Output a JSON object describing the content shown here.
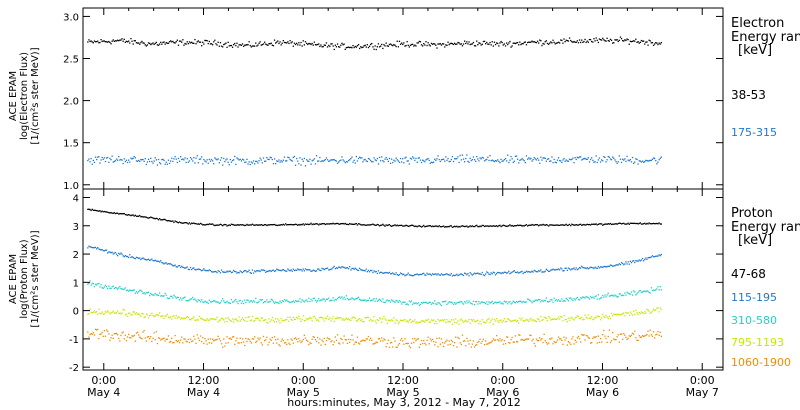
{
  "chart_data": [
    {
      "type": "scatter",
      "panel": "electron",
      "ylabel_lines": [
        "ACE EPAM",
        "log(Electron Flux)",
        "[1/(cm²s ster MeV)]"
      ],
      "ylim": [
        0.95,
        3.1
      ],
      "yticks": [
        "1.0",
        "1.5",
        "2.0",
        "2.5",
        "3.0"
      ],
      "ytick_values": [
        1.0,
        1.5,
        2.0,
        2.5,
        3.0
      ],
      "legend_title": [
        "Electron",
        "Energy ranges",
        "[keV]"
      ],
      "legend_placement": "right",
      "series": [
        {
          "name": "38-53",
          "color": "#000000",
          "base": [
            2.7,
            2.72,
            2.68,
            2.7,
            2.69,
            2.66,
            2.7,
            2.67,
            2.65,
            2.66,
            2.68,
            2.67,
            2.69,
            2.68,
            2.7,
            2.71,
            2.72,
            2.72,
            2.69
          ],
          "noise": 0.05
        },
        {
          "name": "175-315",
          "color": "#1f77d0",
          "base": [
            1.3,
            1.31,
            1.29,
            1.3,
            1.3,
            1.29,
            1.3,
            1.29,
            1.3,
            1.3,
            1.29,
            1.3,
            1.31,
            1.3,
            1.3,
            1.31,
            1.31,
            1.3,
            1.3
          ],
          "noise": 0.07
        }
      ]
    },
    {
      "type": "scatter",
      "panel": "proton",
      "ylabel_lines": [
        "ACE EPAM",
        "log(Proton Flux)",
        "[1/(cm²s ster MeV)]"
      ],
      "ylim": [
        -2.1,
        4.3
      ],
      "yticks": [
        "-2",
        "-1",
        "0",
        "1",
        "2",
        "3",
        "4"
      ],
      "ytick_values": [
        -2,
        -1,
        0,
        1,
        2,
        3,
        4
      ],
      "legend_title": [
        "Proton",
        "Energy ranges",
        "[keV]"
      ],
      "legend_placement": "right",
      "series": [
        {
          "name": "47-68",
          "color": "#000000",
          "base": [
            3.6,
            3.45,
            3.3,
            3.12,
            3.05,
            3.05,
            3.05,
            3.08,
            3.1,
            3.05,
            3.02,
            3.0,
            3.0,
            3.02,
            3.05,
            3.05,
            3.07,
            3.1,
            3.1
          ],
          "noise": 0.04
        },
        {
          "name": "115-195",
          "color": "#1f77d0",
          "base": [
            2.3,
            2.0,
            1.8,
            1.55,
            1.4,
            1.4,
            1.45,
            1.45,
            1.55,
            1.4,
            1.3,
            1.3,
            1.3,
            1.35,
            1.4,
            1.5,
            1.55,
            1.7,
            2.0
          ],
          "noise": 0.08
        },
        {
          "name": "310-580",
          "color": "#20d0c8",
          "base": [
            1.0,
            0.8,
            0.6,
            0.45,
            0.35,
            0.35,
            0.35,
            0.4,
            0.45,
            0.4,
            0.3,
            0.3,
            0.3,
            0.3,
            0.35,
            0.4,
            0.5,
            0.6,
            0.8
          ],
          "noise": 0.12
        },
        {
          "name": "795-1193",
          "color": "#c8e600",
          "base": [
            0.0,
            -0.05,
            -0.15,
            -0.25,
            -0.3,
            -0.3,
            -0.3,
            -0.25,
            -0.25,
            -0.3,
            -0.35,
            -0.35,
            -0.35,
            -0.35,
            -0.3,
            -0.25,
            -0.2,
            -0.1,
            0.05
          ],
          "noise": 0.15
        },
        {
          "name": "1060-1900",
          "color": "#f08c00",
          "base": [
            -0.75,
            -0.85,
            -0.95,
            -1.0,
            -1.05,
            -1.05,
            -1.05,
            -1.0,
            -1.0,
            -1.05,
            -1.1,
            -1.1,
            -1.1,
            -1.05,
            -1.0,
            -1.0,
            -0.95,
            -0.9,
            -0.8
          ],
          "noise": 0.3
        }
      ]
    }
  ],
  "xaxis": {
    "title": "hours:minutes, May  3, 2012 - May  7, 2012",
    "ticks": [
      {
        "hours": 24,
        "time": "0:00",
        "date": "May 4"
      },
      {
        "hours": 36,
        "time": "12:00",
        "date": "May 4"
      },
      {
        "hours": 48,
        "time": "0:00",
        "date": "May 5"
      },
      {
        "hours": 60,
        "time": "12:00",
        "date": "May 5"
      },
      {
        "hours": 72,
        "time": "0:00",
        "date": "May 6"
      },
      {
        "hours": 84,
        "time": "12:00",
        "date": "May 6"
      },
      {
        "hours": 96,
        "time": "0:00",
        "date": "May 7"
      }
    ],
    "xlim_hours": [
      21.5,
      98.5
    ],
    "data_start_hours": 22.0,
    "data_end_hours": 91.0
  }
}
